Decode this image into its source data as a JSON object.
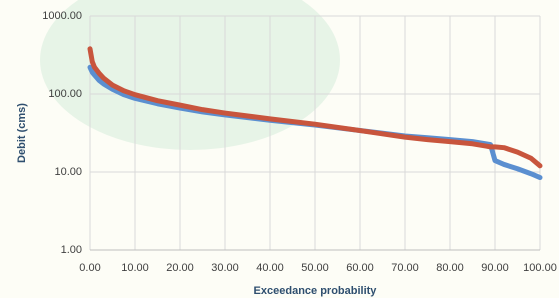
{
  "chart_data": {
    "type": "line",
    "x_label": "Exceedance probability",
    "y_label": "Debit (cms)",
    "yscale": "log",
    "grid": true,
    "xlim": [
      0,
      100
    ],
    "ylim": [
      1,
      1000
    ],
    "xticks": [
      {
        "value": 0,
        "label": "0.00"
      },
      {
        "value": 10,
        "label": "10.00"
      },
      {
        "value": 20,
        "label": "20.00"
      },
      {
        "value": 30,
        "label": "30.00"
      },
      {
        "value": 40,
        "label": "40.00"
      },
      {
        "value": 50,
        "label": "50.00"
      },
      {
        "value": 60,
        "label": "60.00"
      },
      {
        "value": 70,
        "label": "70.00"
      },
      {
        "value": 80,
        "label": "80.00"
      },
      {
        "value": 90,
        "label": "90.00"
      },
      {
        "value": 100,
        "label": "100.00"
      }
    ],
    "yticks": [
      {
        "value": 1,
        "label": "1.00"
      },
      {
        "value": 10,
        "label": "10.00"
      },
      {
        "value": 100,
        "label": "100.00"
      },
      {
        "value": 1000,
        "label": "1000.00"
      }
    ],
    "x": [
      0,
      0.5,
      1,
      2,
      3,
      5,
      7.5,
      10,
      15,
      20,
      25,
      30,
      40,
      50,
      60,
      70,
      75,
      80,
      85,
      88,
      89,
      90,
      92,
      95,
      98,
      100
    ],
    "series": [
      {
        "color": "#5b8fd0",
        "values": [
          220,
          190,
          175,
          150,
          135,
          115,
          98,
          88,
          75,
          66,
          59,
          54,
          46,
          40,
          34,
          29,
          27.5,
          26,
          24.5,
          23,
          22.5,
          14,
          12.5,
          11,
          9.5,
          8.5
        ]
      },
      {
        "color": "#c8553d",
        "values": [
          380,
          260,
          220,
          185,
          160,
          130,
          110,
          98,
          82,
          72,
          63,
          57,
          48,
          41,
          34,
          28,
          26,
          24.5,
          23,
          21.5,
          21,
          21,
          20.5,
          18,
          15,
          12
        ]
      }
    ]
  }
}
